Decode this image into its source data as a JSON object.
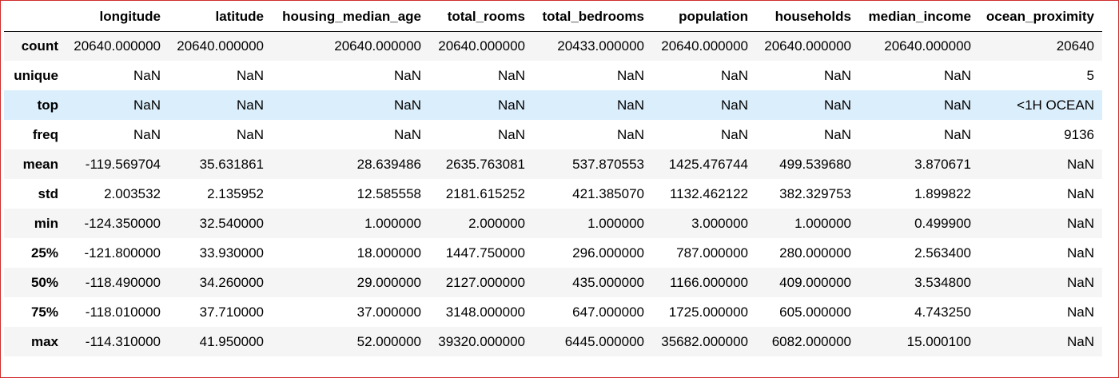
{
  "table": {
    "index_header": "",
    "columns": [
      "longitude",
      "latitude",
      "housing_median_age",
      "total_rooms",
      "total_bedrooms",
      "population",
      "households",
      "median_income",
      "ocean_proximity"
    ],
    "rows": [
      {
        "label": "count",
        "cells": [
          "20640.000000",
          "20640.000000",
          "20640.000000",
          "20640.000000",
          "20433.000000",
          "20640.000000",
          "20640.000000",
          "20640.000000",
          "20640"
        ]
      },
      {
        "label": "unique",
        "cells": [
          "NaN",
          "NaN",
          "NaN",
          "NaN",
          "NaN",
          "NaN",
          "NaN",
          "NaN",
          "5"
        ]
      },
      {
        "label": "top",
        "cells": [
          "NaN",
          "NaN",
          "NaN",
          "NaN",
          "NaN",
          "NaN",
          "NaN",
          "NaN",
          "<1H OCEAN"
        ]
      },
      {
        "label": "freq",
        "cells": [
          "NaN",
          "NaN",
          "NaN",
          "NaN",
          "NaN",
          "NaN",
          "NaN",
          "NaN",
          "9136"
        ]
      },
      {
        "label": "mean",
        "cells": [
          "-119.569704",
          "35.631861",
          "28.639486",
          "2635.763081",
          "537.870553",
          "1425.476744",
          "499.539680",
          "3.870671",
          "NaN"
        ]
      },
      {
        "label": "std",
        "cells": [
          "2.003532",
          "2.135952",
          "12.585558",
          "2181.615252",
          "421.385070",
          "1132.462122",
          "382.329753",
          "1.899822",
          "NaN"
        ]
      },
      {
        "label": "min",
        "cells": [
          "-124.350000",
          "32.540000",
          "1.000000",
          "2.000000",
          "1.000000",
          "3.000000",
          "1.000000",
          "0.499900",
          "NaN"
        ]
      },
      {
        "label": "25%",
        "cells": [
          "-121.800000",
          "33.930000",
          "18.000000",
          "1447.750000",
          "296.000000",
          "787.000000",
          "280.000000",
          "2.563400",
          "NaN"
        ]
      },
      {
        "label": "50%",
        "cells": [
          "-118.490000",
          "34.260000",
          "29.000000",
          "2127.000000",
          "435.000000",
          "1166.000000",
          "409.000000",
          "3.534800",
          "NaN"
        ]
      },
      {
        "label": "75%",
        "cells": [
          "-118.010000",
          "37.710000",
          "37.000000",
          "3148.000000",
          "647.000000",
          "1725.000000",
          "605.000000",
          "4.743250",
          "NaN"
        ]
      },
      {
        "label": "max",
        "cells": [
          "-114.310000",
          "41.950000",
          "52.000000",
          "39320.000000",
          "6445.000000",
          "35682.000000",
          "6082.000000",
          "15.000100",
          "NaN"
        ]
      }
    ],
    "highlighted_row": "top",
    "colors": {
      "header_rule": "#000000",
      "row_stripe": "#f5f5f5",
      "row_highlight": "#dbeefb",
      "frame_border": "#d12b2b"
    }
  }
}
